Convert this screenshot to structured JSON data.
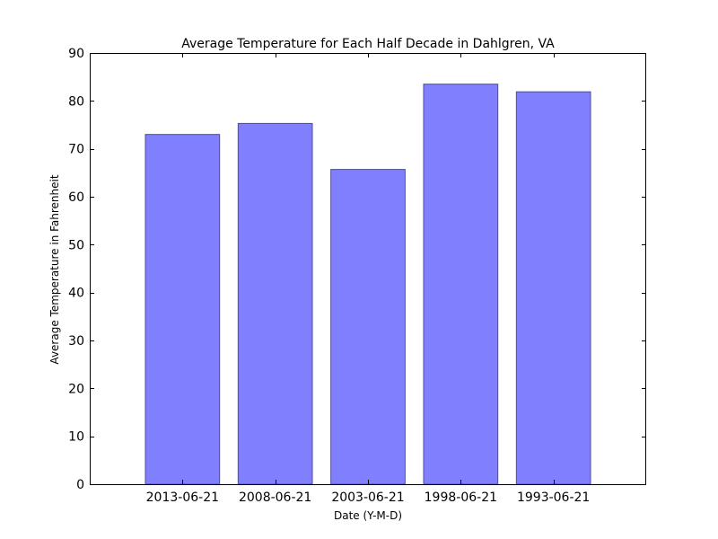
{
  "chart_data": {
    "type": "bar",
    "title": "Average Temperature for Each Half Decade in Dahlgren, VA",
    "xlabel": "Date (Y-M-D)",
    "ylabel": "Average Temperature in Fahrenheit",
    "categories": [
      "2013-06-21",
      "2008-06-21",
      "2003-06-21",
      "1998-06-21",
      "1993-06-21"
    ],
    "values": [
      73.0,
      75.3,
      65.7,
      83.5,
      81.9
    ],
    "ylim": [
      0,
      90
    ],
    "yticks": [
      0,
      10,
      20,
      30,
      40,
      50,
      60,
      70,
      80,
      90
    ],
    "grid": false,
    "bar_color": "#8080ff",
    "bar_edge_color": "#4d4d99"
  }
}
